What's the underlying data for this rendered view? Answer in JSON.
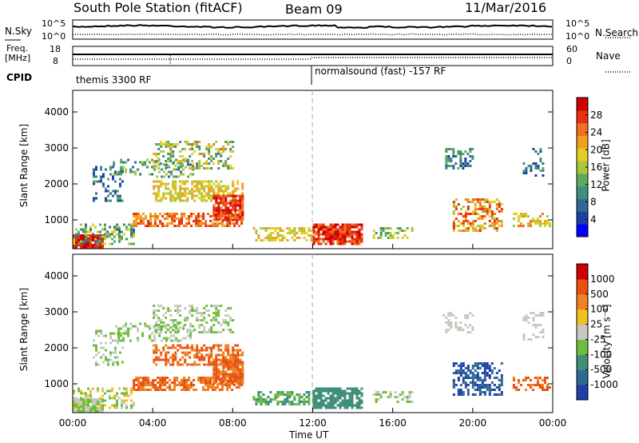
{
  "header": {
    "station": "South Pole Station (fitACF)",
    "beam": "Beam 09",
    "date": "11/Mar/2016"
  },
  "top_panels": {
    "nsky_label": "N.Sky",
    "nsky_ticks": [
      "10^5",
      "10^0"
    ],
    "nsearch_label": "N.Search",
    "nsearch_ticks": [
      "10^5",
      "10^0"
    ],
    "freq_label_1": "Freq.",
    "freq_label_2": "[MHz]",
    "freq_ticks": [
      "18",
      "8"
    ],
    "nave_label": "Nave",
    "nave_ticks": [
      "60",
      "0"
    ],
    "cpid_label": "CPID",
    "cpid_segments": [
      "themis 3300 RF",
      "normalsound (fast) -157 RF"
    ]
  },
  "chart_data": [
    {
      "type": "heatmap",
      "title": "",
      "ylabel": "Slant Range [km]",
      "xlabel": "",
      "ylim": [
        200,
        4600
      ],
      "yticks": [
        "4000",
        "3000",
        "2000",
        "1000"
      ],
      "colorbar_label": "Power [dB]",
      "colorbar_ticks": [
        "28",
        "24",
        "20",
        "16",
        "12",
        "8",
        "4"
      ],
      "colorbar_colors": [
        "#0000ff",
        "#1f3fa8",
        "#2e6a92",
        "#3f8f7a",
        "#5fa860",
        "#a8c83a",
        "#e0d020",
        "#f0a020",
        "#f07020",
        "#e83010",
        "#d00000"
      ],
      "reference_line_x": "12:00"
    },
    {
      "type": "heatmap",
      "title": "",
      "ylabel": "Slant Range [km]",
      "xlabel": "Time UT",
      "ylim": [
        200,
        4600
      ],
      "yticks": [
        "4000",
        "3000",
        "2000",
        "1000"
      ],
      "xticks": [
        "00:00",
        "04:00",
        "08:00",
        "12:00",
        "16:00",
        "20:00",
        "00:00"
      ],
      "colorbar_label": "Velocity [m s⁻¹]",
      "colorbar_ticks": [
        "1000",
        "500",
        "100",
        "25",
        "-25",
        "-100",
        "-500",
        "-1000"
      ],
      "colorbar_colors": [
        "#1f3fa8",
        "#2e6a92",
        "#3f8f7a",
        "#6cbf3c",
        "#c8c8c0",
        "#f0c020",
        "#f08020",
        "#e85010",
        "#d00000"
      ],
      "reference_line_x": "12:00"
    }
  ]
}
